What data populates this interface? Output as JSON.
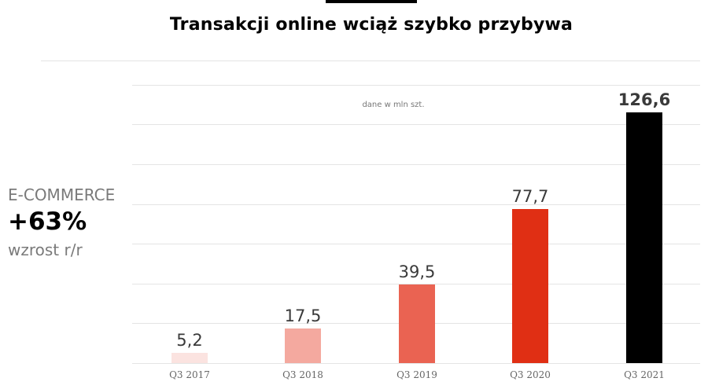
{
  "header": {
    "title": "Transakcji online wciąż szybko przybywa"
  },
  "callout": {
    "label": "E-COMMERCE",
    "value": "+63%",
    "sublabel": "wzrost r/r"
  },
  "chart": {
    "unit_note": "dane w mln szt."
  },
  "chart_data": {
    "type": "bar",
    "title": "Transakcji online wciąż szybko przybywa",
    "subtitle": "dane w mln szt.",
    "categories": [
      "Q3 2017",
      "Q3 2018",
      "Q3 2019",
      "Q3 2020",
      "Q3 2021"
    ],
    "values": [
      5.2,
      17.5,
      39.5,
      77.7,
      126.6
    ],
    "value_labels": [
      "5,2",
      "17,5",
      "39,5",
      "77,7",
      "126,6"
    ],
    "colors": [
      "#fbe3e0",
      "#f4a99f",
      "#ea6352",
      "#e02f14",
      "#000000"
    ],
    "xlabel": "",
    "ylabel": "",
    "ylim": [
      0,
      140
    ],
    "grid": true,
    "annotation": {
      "label": "E-COMMERCE",
      "value": "+63%",
      "sublabel": "wzrost r/r"
    }
  }
}
